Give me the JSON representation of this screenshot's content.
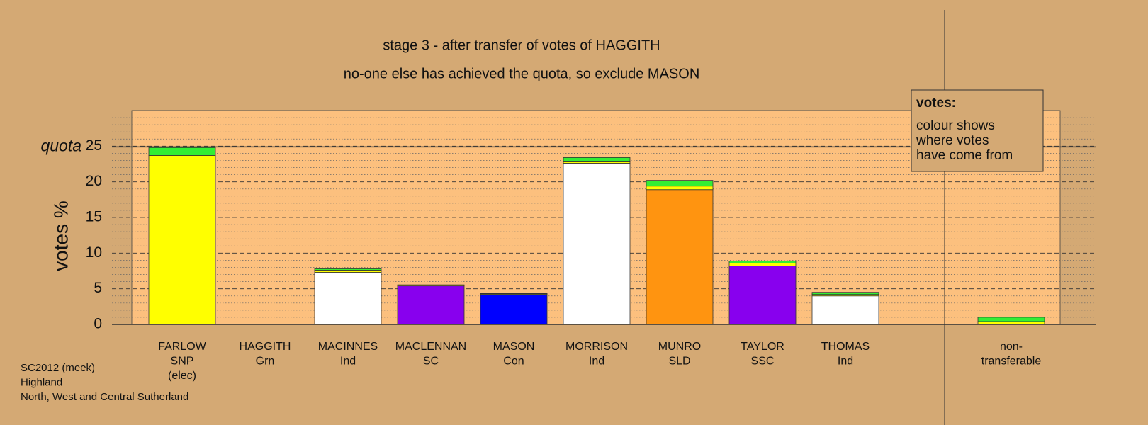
{
  "chart_data": {
    "type": "stacked-bar",
    "title": "stage 3 - after transfer of votes of HAGGITH",
    "subtitle": "no-one else has achieved the quota, so exclude MASON",
    "y_label": "votes %",
    "categories": [
      [
        "FARLOW",
        "SNP",
        "(elec)"
      ],
      [
        "HAGGITH",
        "Grn"
      ],
      [
        "MACINNES",
        "Ind"
      ],
      [
        "MACLENNAN",
        "SC"
      ],
      [
        "MASON",
        "Con"
      ],
      [
        "MORRISON",
        "Ind"
      ],
      [
        "MUNRO",
        "SLD"
      ],
      [
        "TAYLOR",
        "SSC"
      ],
      [
        "THOMAS",
        "Ind"
      ],
      null,
      [
        "non-",
        "transferable"
      ]
    ],
    "series": [
      {
        "colors": [
          "#ffff00",
          "#33ee33",
          "#ffffff",
          "#8800ee",
          "#0000ff",
          "#ffffff",
          "#ff9410",
          "#8800ee",
          "#ffffff",
          null,
          "#ffffff"
        ],
        "values": [
          23.7,
          0,
          7.3,
          5.4,
          4.2,
          22.6,
          18.9,
          8.2,
          4.0,
          null,
          0
        ]
      },
      {
        "color": "#ffff00",
        "values": [
          0,
          0,
          0.3,
          0.1,
          0.1,
          0.3,
          0.5,
          0.4,
          0.2,
          null,
          0.4
        ]
      },
      {
        "color": "#33ee33",
        "values": [
          1.1,
          0,
          0.2,
          0.05,
          0.05,
          0.5,
          0.8,
          0.3,
          0.3,
          null,
          0.6
        ]
      }
    ],
    "ylim": [
      0,
      30
    ],
    "yticks": [
      0,
      5,
      10,
      15,
      20,
      25
    ],
    "minor_yticks": [
      1,
      2,
      3,
      4,
      6,
      7,
      8,
      9,
      11,
      12,
      13,
      14,
      16,
      17,
      18,
      19,
      21,
      22,
      23,
      24,
      26,
      27,
      28,
      29
    ],
    "quota": {
      "label": "quota",
      "value": 24.9
    },
    "note_box": {
      "title": "votes:",
      "lines": [
        "colour shows",
        "where votes",
        "have come from"
      ]
    },
    "footnotes": [
      "SC2012 (meek)",
      "Highland",
      "North, West and Central Sutherland"
    ]
  }
}
